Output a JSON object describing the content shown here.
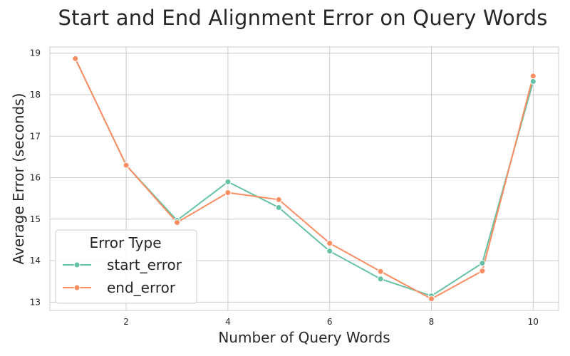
{
  "chart_data": {
    "type": "line",
    "title": "Start and End Alignment Error on Query Words",
    "xlabel": "Number of Query Words",
    "ylabel": "Average Error (seconds)",
    "x": [
      1,
      2,
      3,
      4,
      5,
      6,
      7,
      8,
      9,
      10
    ],
    "xticks": [
      2,
      4,
      6,
      8,
      10
    ],
    "yticks": [
      13,
      14,
      15,
      16,
      17,
      18,
      19
    ],
    "xlim": [
      0.5,
      10.5
    ],
    "ylim": [
      12.8,
      19.15
    ],
    "grid": true,
    "legend": {
      "title": "Error Type",
      "placement": "lower-left"
    },
    "series": [
      {
        "name": "start_error",
        "color": "#66c2a5",
        "values": [
          18.87,
          16.3,
          14.97,
          15.9,
          15.28,
          14.23,
          13.56,
          13.15,
          13.94,
          18.32
        ]
      },
      {
        "name": "end_error",
        "color": "#fc8d62",
        "values": [
          18.87,
          16.3,
          14.92,
          15.64,
          15.47,
          14.42,
          13.74,
          13.08,
          13.75,
          18.45
        ]
      }
    ]
  }
}
